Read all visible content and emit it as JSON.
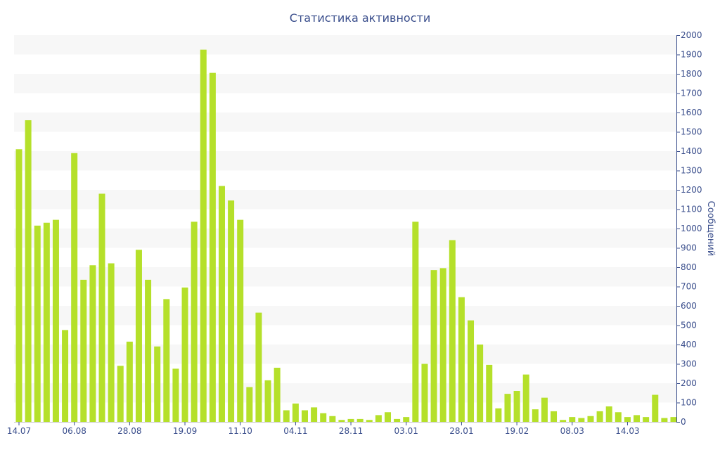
{
  "chart_data": {
    "type": "bar",
    "title": "Статистика активности",
    "xlabel": "",
    "ylabel": "Сообщений",
    "ylim": [
      0,
      2000
    ],
    "y_ticks": [
      0,
      100,
      200,
      300,
      400,
      500,
      600,
      700,
      800,
      900,
      1000,
      1100,
      1200,
      1300,
      1400,
      1500,
      1600,
      1700,
      1800,
      1900,
      2000
    ],
    "y_axis_position": "right",
    "grid": "alternating horizontal bands",
    "bar_color": "#b5e02a",
    "band_color": "#f7f7f7",
    "text_color": "#3a4e8c",
    "x_tick_labels": [
      {
        "label": "14.07",
        "index": 0
      },
      {
        "label": "06.08",
        "index": 6
      },
      {
        "label": "28.08",
        "index": 12
      },
      {
        "label": "19.09",
        "index": 18
      },
      {
        "label": "11.10",
        "index": 24
      },
      {
        "label": "04.11",
        "index": 30
      },
      {
        "label": "28.11",
        "index": 36
      },
      {
        "label": "03.01",
        "index": 42
      },
      {
        "label": "28.01",
        "index": 48
      },
      {
        "label": "19.02",
        "index": 54
      },
      {
        "label": "08.03",
        "index": 60
      },
      {
        "label": "14.03",
        "index": 66
      }
    ],
    "values": [
      1410,
      1560,
      1015,
      1030,
      1045,
      475,
      1390,
      735,
      810,
      1180,
      820,
      290,
      415,
      890,
      735,
      390,
      635,
      275,
      695,
      1035,
      1925,
      1805,
      1220,
      1145,
      1045,
      180,
      565,
      215,
      280,
      60,
      95,
      60,
      75,
      45,
      30,
      10,
      15,
      15,
      10,
      35,
      50,
      15,
      25,
      1035,
      300,
      785,
      795,
      940,
      645,
      525,
      400,
      295,
      70,
      145,
      160,
      245,
      65,
      125,
      55,
      10,
      25,
      20,
      30,
      55,
      80,
      50,
      25,
      35,
      25,
      140,
      20,
      25
    ]
  }
}
